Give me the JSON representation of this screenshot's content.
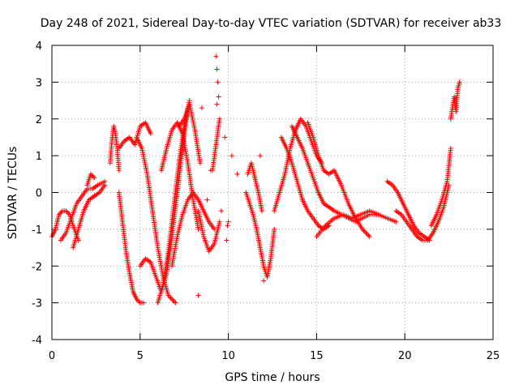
{
  "chart_data": {
    "type": "scatter",
    "title": "Day 248 of 2021, Sidereal Day-to-day VTEC variation (SDTVAR) for receiver ab33",
    "xlabel": "GPS time / hours",
    "ylabel": "SDTVAR / TECUs",
    "xlim": [
      0,
      25
    ],
    "ylim": [
      -4,
      4
    ],
    "xticks": [
      "0",
      "5",
      "10",
      "15",
      "20",
      "25"
    ],
    "yticks": [
      "-4",
      "-3",
      "-2",
      "-1",
      "0",
      "1",
      "2",
      "3",
      "4"
    ],
    "grid": true,
    "marker": "+",
    "color": "#ff0000",
    "tracks": [
      {
        "x": [
          0.0,
          0.2,
          0.4,
          0.6,
          0.8,
          1.0,
          1.2,
          1.5
        ],
        "y": [
          -1.2,
          -1.0,
          -0.6,
          -0.5,
          -0.5,
          -0.6,
          -0.9,
          -1.3
        ]
      },
      {
        "x": [
          0.5,
          0.8,
          1.1,
          1.4,
          1.7,
          2.0,
          2.3,
          2.6,
          3.0
        ],
        "y": [
          -1.3,
          -1.1,
          -0.7,
          -0.3,
          -0.1,
          0.1,
          0.1,
          0.2,
          0.3
        ]
      },
      {
        "x": [
          1.2,
          1.5,
          1.8,
          2.1,
          2.4,
          2.7,
          3.0
        ],
        "y": [
          -1.5,
          -1.0,
          -0.5,
          -0.2,
          -0.1,
          0.0,
          0.2
        ]
      },
      {
        "x": [
          2.0,
          2.2,
          2.4
        ],
        "y": [
          0.2,
          0.5,
          0.4
        ]
      },
      {
        "x": [
          3.3,
          3.4,
          3.5,
          3.6,
          3.7,
          3.8
        ],
        "y": [
          0.8,
          1.4,
          1.8,
          1.6,
          1.2,
          0.6
        ]
      },
      {
        "x": [
          3.8,
          4.0,
          4.2,
          4.4,
          4.6,
          4.8,
          5.0,
          5.2
        ],
        "y": [
          0.0,
          -0.8,
          -1.6,
          -2.2,
          -2.7,
          -2.9,
          -3.0,
          -3.0
        ]
      },
      {
        "x": [
          3.8,
          4.1,
          4.4,
          4.7,
          5.0,
          5.3,
          5.6
        ],
        "y": [
          1.2,
          1.4,
          1.5,
          1.3,
          1.8,
          1.9,
          1.6
        ]
      },
      {
        "x": [
          4.8,
          5.1,
          5.4,
          5.7,
          6.0,
          6.3,
          6.6,
          7.0
        ],
        "y": [
          1.5,
          1.2,
          0.5,
          -0.5,
          -1.5,
          -2.3,
          -2.8,
          -3.0
        ]
      },
      {
        "x": [
          5.0,
          5.3,
          5.6,
          5.9,
          6.2,
          6.5,
          6.8,
          7.1,
          7.4,
          7.7
        ],
        "y": [
          -2.0,
          -1.8,
          -1.9,
          -2.3,
          -2.7,
          -2.2,
          -1.2,
          0.0,
          1.2,
          2.3
        ]
      },
      {
        "x": [
          6.0,
          6.3,
          6.6,
          6.9,
          7.2,
          7.5,
          7.8
        ],
        "y": [
          -3.0,
          -2.5,
          -1.6,
          -0.4,
          0.8,
          1.8,
          2.5
        ]
      },
      {
        "x": [
          6.2,
          6.5,
          6.8,
          7.1,
          7.4,
          7.7,
          8.0,
          8.3
        ],
        "y": [
          0.6,
          1.2,
          1.7,
          1.9,
          1.6,
          0.8,
          -0.2,
          -1.0
        ]
      },
      {
        "x": [
          6.8,
          7.1,
          7.4,
          7.7,
          8.0,
          8.3,
          8.6,
          8.9,
          9.2
        ],
        "y": [
          -2.0,
          -1.2,
          -0.6,
          -0.2,
          0.0,
          -0.2,
          -0.5,
          -0.8,
          -1.0
        ]
      },
      {
        "x": [
          7.2,
          7.5,
          7.8,
          8.1,
          8.4
        ],
        "y": [
          1.8,
          2.0,
          2.4,
          1.7,
          0.8
        ]
      },
      {
        "x": [
          8.3,
          8.6,
          8.9,
          9.2,
          9.5
        ],
        "y": [
          -0.5,
          -1.2,
          -1.6,
          -1.4,
          -0.8
        ]
      },
      {
        "x": [
          9.1,
          9.3,
          9.5
        ],
        "y": [
          0.6,
          1.3,
          2.0
        ]
      },
      {
        "x": [
          11.0,
          11.2,
          11.4,
          11.6,
          11.8,
          12.0,
          12.2,
          12.4,
          12.6
        ],
        "y": [
          0.0,
          -0.3,
          -0.6,
          -1.0,
          -1.5,
          -2.0,
          -2.3,
          -1.8,
          -1.0
        ]
      },
      {
        "x": [
          11.1,
          11.3,
          11.5,
          11.7,
          11.9
        ],
        "y": [
          0.5,
          0.8,
          0.4,
          0.0,
          -0.5
        ]
      },
      {
        "x": [
          12.6,
          12.9,
          13.2,
          13.5,
          13.8,
          14.1,
          14.4,
          14.7,
          15.0,
          15.3
        ],
        "y": [
          -0.5,
          0.0,
          0.5,
          1.2,
          1.7,
          2.0,
          1.8,
          1.4,
          1.0,
          0.8
        ]
      },
      {
        "x": [
          13.0,
          13.3,
          13.6,
          13.9,
          14.2,
          14.5,
          14.8,
          15.1,
          15.4,
          15.7
        ],
        "y": [
          1.5,
          1.2,
          0.8,
          0.3,
          -0.2,
          -0.5,
          -0.7,
          -0.9,
          -1.0,
          -0.9
        ]
      },
      {
        "x": [
          13.6,
          13.9,
          14.2,
          14.5,
          14.8,
          15.1,
          15.4,
          15.7,
          16.0,
          16.4,
          16.8,
          17.2,
          17.6,
          18.0,
          18.4
        ],
        "y": [
          1.8,
          1.5,
          1.2,
          0.8,
          0.4,
          0.0,
          -0.3,
          -0.4,
          -0.5,
          -0.6,
          -0.7,
          -0.8,
          -0.7,
          -0.6,
          -0.6
        ]
      },
      {
        "x": [
          14.5,
          14.8,
          15.1,
          15.4,
          15.7,
          16.0,
          16.4,
          16.8,
          17.2,
          17.6,
          18.0
        ],
        "y": [
          1.9,
          1.5,
          1.0,
          0.6,
          0.5,
          0.6,
          0.2,
          -0.3,
          -0.7,
          -1.0,
          -1.2
        ]
      },
      {
        "x": [
          15.0,
          15.5,
          16.0,
          16.5,
          17.0,
          17.5,
          18.0,
          18.5,
          19.0,
          19.5
        ],
        "y": [
          -1.2,
          -0.9,
          -0.7,
          -0.6,
          -0.7,
          -0.6,
          -0.5,
          -0.6,
          -0.7,
          -0.8
        ]
      },
      {
        "x": [
          19.0,
          19.3,
          19.6,
          19.9,
          20.2,
          20.5,
          20.8,
          21.1,
          21.4
        ],
        "y": [
          0.3,
          0.2,
          0.0,
          -0.3,
          -0.6,
          -0.9,
          -1.1,
          -1.2,
          -1.3
        ]
      },
      {
        "x": [
          19.5,
          19.8,
          20.1,
          20.4,
          20.7,
          21.0,
          21.3,
          21.6,
          21.9,
          22.2,
          22.5
        ],
        "y": [
          -0.5,
          -0.6,
          -0.8,
          -1.0,
          -1.2,
          -1.3,
          -1.3,
          -1.1,
          -0.8,
          -0.4,
          0.2
        ]
      },
      {
        "x": [
          21.5,
          21.8,
          22.1,
          22.4,
          22.6
        ],
        "y": [
          -0.9,
          -0.6,
          -0.2,
          0.3,
          1.2
        ]
      },
      {
        "x": [
          22.6,
          22.8,
          22.9,
          23.0,
          23.1
        ],
        "y": [
          2.0,
          2.6,
          2.2,
          2.8,
          3.0
        ]
      }
    ],
    "scattered": [
      [
        9.3,
        3.7
      ],
      [
        9.35,
        3.35
      ],
      [
        9.4,
        3.0
      ],
      [
        9.45,
        2.6
      ],
      [
        9.35,
        2.4
      ],
      [
        8.5,
        2.3
      ],
      [
        9.8,
        1.5
      ],
      [
        10.2,
        1.0
      ],
      [
        10.5,
        0.5
      ],
      [
        9.0,
        0.6
      ],
      [
        8.8,
        -0.2
      ],
      [
        9.6,
        -0.5
      ],
      [
        9.9,
        -1.3
      ],
      [
        9.95,
        -0.9
      ],
      [
        8.3,
        -2.8
      ],
      [
        10.0,
        -0.8
      ],
      [
        12.0,
        -2.4
      ],
      [
        11.8,
        1.0
      ]
    ]
  }
}
